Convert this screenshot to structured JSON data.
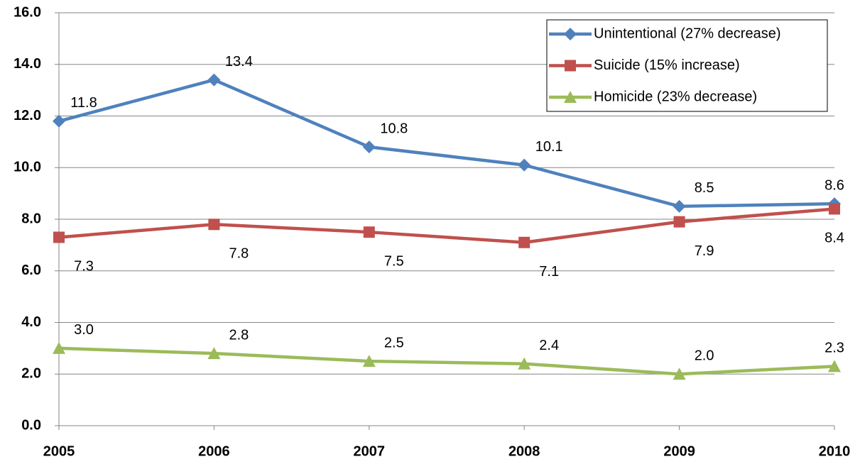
{
  "chart_data": {
    "type": "line",
    "categories": [
      "2005",
      "2006",
      "2007",
      "2008",
      "2009",
      "2010"
    ],
    "series": [
      {
        "name": "Unintentional (27% decrease)",
        "color": "#4f81bd",
        "marker": "diamond",
        "values": [
          11.8,
          13.4,
          10.8,
          10.1,
          8.5,
          8.6
        ],
        "value_labels": [
          "11.8",
          "13.4",
          "10.8",
          "10.1",
          "8.5",
          "8.6"
        ]
      },
      {
        "name": "Suicide (15% increase)",
        "color": "#c0504d",
        "marker": "square",
        "values": [
          7.3,
          7.8,
          7.5,
          7.1,
          7.9,
          8.4
        ],
        "value_labels": [
          "7.3",
          "7.8",
          "7.5",
          "7.1",
          "7.9",
          "8.4"
        ]
      },
      {
        "name": "Homicide (23% decrease)",
        "color": "#9bbb59",
        "marker": "triangle",
        "values": [
          3.0,
          2.8,
          2.5,
          2.4,
          2.0,
          2.3
        ],
        "value_labels": [
          "3.0",
          "2.8",
          "2.5",
          "2.4",
          "2.0",
          "2.3"
        ]
      }
    ],
    "ylim": [
      0,
      16
    ],
    "yticks": [
      {
        "value": 0,
        "label": "0.0"
      },
      {
        "value": 2,
        "label": "2.0"
      },
      {
        "value": 4,
        "label": "4.0"
      },
      {
        "value": 6,
        "label": "6.0"
      },
      {
        "value": 8,
        "label": "8.0"
      },
      {
        "value": 10,
        "label": "10.0"
      },
      {
        "value": 12,
        "label": "12.0"
      },
      {
        "value": 14,
        "label": "14.0"
      },
      {
        "value": 16,
        "label": "16.0"
      }
    ],
    "grid": true,
    "legend": "upper right"
  }
}
